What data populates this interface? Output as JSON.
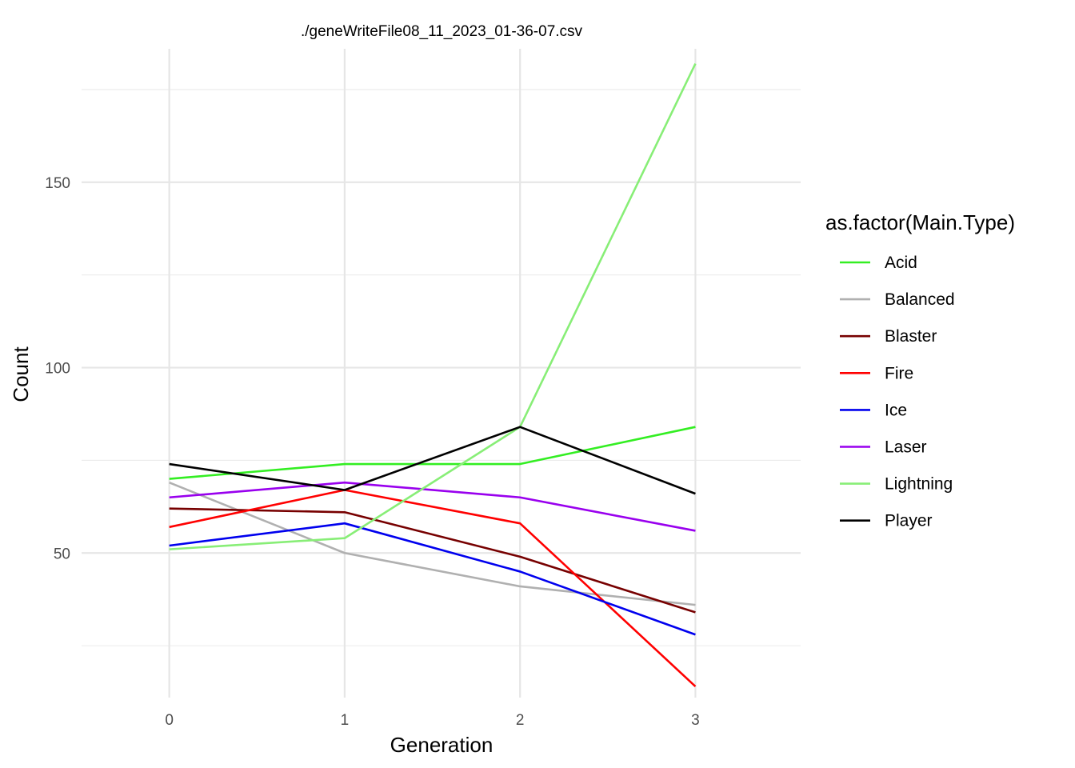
{
  "chart_data": {
    "type": "line",
    "title": "./geneWriteFile08_11_2023_01-36-07.csv",
    "xlabel": "Generation",
    "ylabel": "Count",
    "x": [
      0,
      1,
      2,
      3
    ],
    "x_ticks": [
      "0",
      "1",
      "2",
      "3"
    ],
    "y_ticks": [
      "50",
      "100",
      "150"
    ],
    "xlim": [
      -0.5,
      3.6
    ],
    "ylim": [
      11,
      186
    ],
    "grid": true,
    "legend": {
      "title": "as.factor(Main.Type)",
      "position": "right"
    },
    "series": [
      {
        "name": "Acid",
        "color": "#33ee22",
        "values": [
          70,
          74,
          74,
          84
        ]
      },
      {
        "name": "Balanced",
        "color": "#b0b0b0",
        "values": [
          69,
          50,
          41,
          36
        ]
      },
      {
        "name": "Blaster",
        "color": "#770000",
        "values": [
          62,
          61,
          49,
          34
        ]
      },
      {
        "name": "Fire",
        "color": "#ff0000",
        "values": [
          57,
          67,
          58,
          14
        ]
      },
      {
        "name": "Ice",
        "color": "#0000ee",
        "values": [
          52,
          58,
          45,
          28
        ]
      },
      {
        "name": "Laser",
        "color": "#9900ee",
        "values": [
          65,
          69,
          65,
          56
        ]
      },
      {
        "name": "Lightning",
        "color": "#88ee77",
        "values": [
          51,
          54,
          84,
          182
        ]
      },
      {
        "name": "Player",
        "color": "#000000",
        "values": [
          74,
          67,
          84,
          66
        ]
      }
    ]
  }
}
